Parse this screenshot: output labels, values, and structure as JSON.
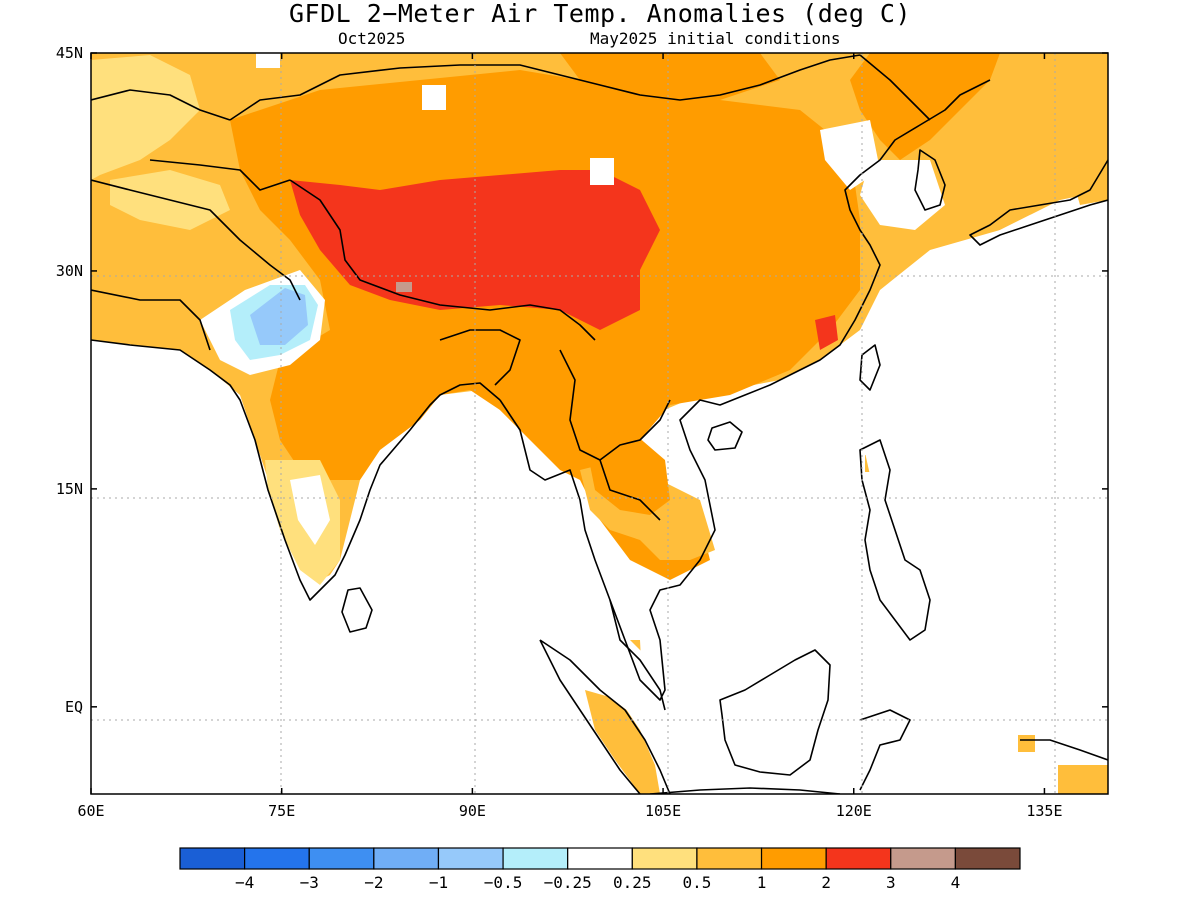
{
  "title": "GFDL 2−Meter Air Temp. Anomalies (deg C)",
  "subtitle_left": "Oct2025",
  "subtitle_right": "May2025 initial conditions",
  "lon_range": [
    60,
    140
  ],
  "lat_range": [
    -6,
    45
  ],
  "lon_ticks": [
    {
      "value": 60,
      "label": "60E"
    },
    {
      "value": 75,
      "label": "75E"
    },
    {
      "value": 90,
      "label": "90E"
    },
    {
      "value": 105,
      "label": "105E"
    },
    {
      "value": 120,
      "label": "120E"
    },
    {
      "value": 135,
      "label": "135E"
    }
  ],
  "lat_ticks": [
    {
      "value": 45,
      "label": "45N"
    },
    {
      "value": 30,
      "label": "30N"
    },
    {
      "value": 15,
      "label": "15N"
    },
    {
      "value": 0,
      "label": "EQ"
    }
  ],
  "colorbar": {
    "colors": [
      "#1a5fd6",
      "#2474ec",
      "#3e8ff2",
      "#70aef6",
      "#96c9fa",
      "#b4eefa",
      "#ffffff",
      "#ffe07d",
      "#ffbe3b",
      "#ff9c00",
      "#f4351c",
      "#c59a8c",
      "#7a4a3a"
    ],
    "labels": [
      "−4",
      "−3",
      "−2",
      "−1",
      "−0.5",
      "−0.25",
      "0.25",
      "0.5",
      "1",
      "2",
      "3",
      "4"
    ]
  },
  "anomaly_colors": {
    "light_yellow": "#ffe07d",
    "yellow_orange": "#ffbe3b",
    "orange": "#ff9c00",
    "red": "#f4351c",
    "light_blue": "#96c9fa",
    "cyan": "#b4eefa",
    "gray_brown": "#c59a8c"
  }
}
